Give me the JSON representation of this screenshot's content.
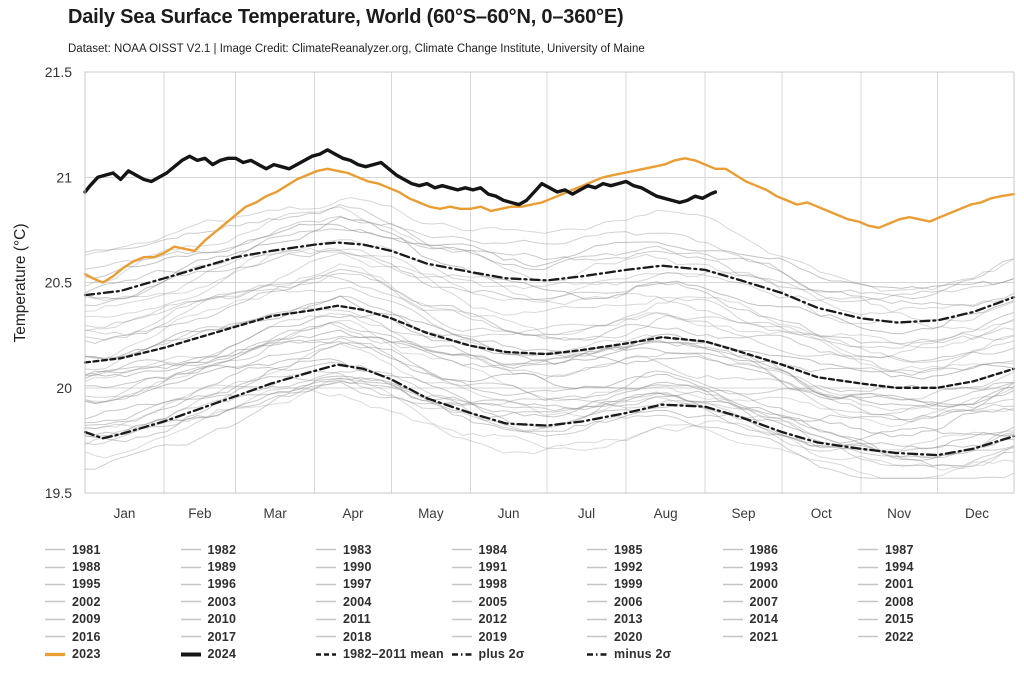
{
  "header": {
    "title": "Daily Sea Surface Temperature, World (60°S–60°N, 0–360°E)",
    "subtitle": "Dataset: NOAA OISST V2.1 | Image Credit: ClimateReanalyzer.org, Climate Change Institute, University of Maine"
  },
  "colors": {
    "line_2023": "#EA9D33",
    "line_2024": "#151515",
    "dashed_stats": "#1a1a1a",
    "year_lines": "#8c8c8c",
    "legend_year_swatch": "#c5c5c5",
    "grid": "#d7d7d7",
    "plot_border": "#c8c8c8",
    "title_text": "#1c1c1c",
    "muted_text": "#333333"
  },
  "chart_data": {
    "type": "line",
    "title": "Daily Sea Surface Temperature, World (60°S–60°N, 0–360°E)",
    "subtitle": "Dataset: NOAA OISST V2.1 | Image Credit: ClimateReanalyzer.org, Climate Change Institute, University of Maine",
    "xlabel": "",
    "ylabel": "Temperature (°C)",
    "ylim": [
      19.5,
      21.5
    ],
    "yticks": [
      21.5,
      21,
      20.5,
      20,
      19.5
    ],
    "grid": true,
    "legend_position": "bottom",
    "x_unit": "day of year (1–365)",
    "months": [
      "Jan",
      "Feb",
      "Mar",
      "Apr",
      "May",
      "Jun",
      "Jul",
      "Aug",
      "Sep",
      "Oct",
      "Nov",
      "Dec"
    ],
    "month_days": [
      31,
      28,
      31,
      30,
      31,
      30,
      31,
      31,
      30,
      31,
      30,
      31
    ],
    "series": [
      {
        "id": "plus2s",
        "name": "plus 2σ",
        "style": "dashdot",
        "color": "#1a1a1a",
        "width": 2.3,
        "d": [
          1,
          15,
          32,
          46,
          60,
          74,
          91,
          100,
          110,
          121,
          135,
          152,
          166,
          182,
          196,
          213,
          227,
          244,
          258,
          274,
          288,
          305,
          319,
          335,
          349,
          365
        ],
        "v": [
          20.44,
          20.46,
          20.52,
          20.57,
          20.62,
          20.65,
          20.68,
          20.69,
          20.68,
          20.65,
          20.59,
          20.55,
          20.52,
          20.51,
          20.53,
          20.56,
          20.58,
          20.56,
          20.51,
          20.45,
          20.38,
          20.33,
          20.31,
          20.32,
          20.36,
          20.43
        ]
      },
      {
        "id": "mean",
        "name": "1982–2011 mean",
        "style": "dashed",
        "color": "#1a1a1a",
        "width": 2.3,
        "d": [
          1,
          15,
          32,
          46,
          60,
          74,
          91,
          100,
          110,
          121,
          135,
          152,
          166,
          182,
          196,
          213,
          227,
          244,
          258,
          274,
          288,
          305,
          319,
          335,
          349,
          365
        ],
        "v": [
          20.12,
          20.14,
          20.19,
          20.24,
          20.29,
          20.34,
          20.37,
          20.39,
          20.37,
          20.33,
          20.26,
          20.2,
          20.17,
          20.16,
          20.18,
          20.21,
          20.24,
          20.22,
          20.17,
          20.11,
          20.05,
          20.02,
          20.0,
          20.0,
          20.03,
          20.09
        ]
      },
      {
        "id": "minus2s",
        "name": "minus 2σ",
        "style": "dashdot",
        "color": "#1a1a1a",
        "width": 2.3,
        "d": [
          1,
          8,
          15,
          32,
          46,
          60,
          74,
          91,
          100,
          110,
          121,
          135,
          152,
          166,
          182,
          196,
          213,
          227,
          244,
          258,
          274,
          288,
          305,
          319,
          335,
          349,
          365
        ],
        "v": [
          19.79,
          19.76,
          19.78,
          19.84,
          19.9,
          19.96,
          20.02,
          20.08,
          20.11,
          20.09,
          20.04,
          19.95,
          19.88,
          19.83,
          19.82,
          19.84,
          19.88,
          19.92,
          19.91,
          19.86,
          19.79,
          19.74,
          19.71,
          19.69,
          19.68,
          19.71,
          19.77
        ]
      },
      {
        "id": "y2023",
        "name": "2023",
        "style": "solid",
        "color": "#EA9D33",
        "width": 2.4,
        "d": [
          1,
          4,
          8,
          12,
          16,
          20,
          24,
          28,
          32,
          36,
          40,
          44,
          48,
          52,
          56,
          60,
          64,
          68,
          72,
          76,
          80,
          84,
          88,
          92,
          96,
          100,
          104,
          108,
          112,
          116,
          120,
          124,
          128,
          132,
          136,
          140,
          144,
          148,
          152,
          156,
          160,
          164,
          168,
          172,
          176,
          180,
          184,
          188,
          192,
          196,
          200,
          204,
          208,
          212,
          216,
          220,
          224,
          228,
          232,
          236,
          240,
          244,
          248,
          252,
          256,
          260,
          264,
          268,
          272,
          276,
          280,
          284,
          288,
          292,
          296,
          300,
          304,
          308,
          312,
          316,
          320,
          324,
          328,
          332,
          336,
          340,
          344,
          348,
          352,
          356,
          360,
          365
        ],
        "v": [
          20.54,
          20.52,
          20.5,
          20.53,
          20.57,
          20.6,
          20.62,
          20.62,
          20.64,
          20.67,
          20.66,
          20.65,
          20.7,
          20.74,
          20.78,
          20.82,
          20.86,
          20.88,
          20.91,
          20.93,
          20.96,
          20.99,
          21.01,
          21.03,
          21.04,
          21.03,
          21.02,
          21.0,
          20.98,
          20.97,
          20.95,
          20.93,
          20.9,
          20.88,
          20.86,
          20.85,
          20.86,
          20.85,
          20.85,
          20.86,
          20.84,
          20.85,
          20.86,
          20.86,
          20.87,
          20.88,
          20.9,
          20.92,
          20.94,
          20.96,
          20.98,
          21.0,
          21.01,
          21.02,
          21.03,
          21.04,
          21.05,
          21.06,
          21.08,
          21.09,
          21.08,
          21.06,
          21.04,
          21.04,
          21.01,
          20.98,
          20.96,
          20.94,
          20.91,
          20.89,
          20.87,
          20.88,
          20.86,
          20.84,
          20.82,
          20.8,
          20.79,
          20.77,
          20.76,
          20.78,
          20.8,
          20.81,
          20.8,
          20.79,
          20.81,
          20.83,
          20.85,
          20.87,
          20.88,
          20.9,
          20.91,
          20.92
        ]
      },
      {
        "id": "y2024",
        "name": "2024",
        "style": "solid",
        "color": "#151515",
        "width": 3.4,
        "d": [
          1,
          3,
          6,
          9,
          12,
          15,
          18,
          21,
          24,
          27,
          30,
          33,
          36,
          39,
          42,
          45,
          48,
          51,
          54,
          57,
          60,
          63,
          66,
          69,
          72,
          75,
          78,
          81,
          84,
          87,
          90,
          93,
          96,
          99,
          102,
          105,
          108,
          111,
          114,
          117,
          120,
          123,
          126,
          129,
          132,
          135,
          138,
          141,
          144,
          147,
          150,
          153,
          156,
          159,
          162,
          165,
          168,
          171,
          174,
          177,
          180,
          183,
          186,
          189,
          192,
          195,
          198,
          201,
          204,
          207,
          210,
          213,
          216,
          219,
          222,
          225,
          228,
          231,
          234,
          237,
          240,
          243,
          246,
          248
        ],
        "v": [
          20.93,
          20.96,
          21.0,
          21.01,
          21.02,
          20.99,
          21.03,
          21.01,
          20.99,
          20.98,
          21.0,
          21.02,
          21.05,
          21.08,
          21.1,
          21.08,
          21.09,
          21.06,
          21.08,
          21.09,
          21.09,
          21.07,
          21.08,
          21.06,
          21.04,
          21.06,
          21.05,
          21.04,
          21.06,
          21.08,
          21.1,
          21.11,
          21.13,
          21.11,
          21.09,
          21.08,
          21.06,
          21.05,
          21.06,
          21.07,
          21.04,
          21.01,
          20.99,
          20.97,
          20.96,
          20.97,
          20.95,
          20.96,
          20.95,
          20.94,
          20.95,
          20.94,
          20.95,
          20.92,
          20.91,
          20.89,
          20.88,
          20.87,
          20.89,
          20.93,
          20.97,
          20.95,
          20.93,
          20.94,
          20.92,
          20.94,
          20.96,
          20.95,
          20.97,
          20.96,
          20.97,
          20.98,
          20.96,
          20.95,
          20.93,
          20.91,
          20.9,
          20.89,
          20.88,
          20.89,
          20.91,
          20.9,
          20.92,
          20.93
        ]
      }
    ],
    "background_years": {
      "years": [
        "1981",
        "1982",
        "1983",
        "1984",
        "1985",
        "1986",
        "1987",
        "1988",
        "1989",
        "1990",
        "1991",
        "1992",
        "1993",
        "1994",
        "1995",
        "1996",
        "1997",
        "1998",
        "1999",
        "2000",
        "2001",
        "2002",
        "2003",
        "2004",
        "2005",
        "2006",
        "2007",
        "2008",
        "2009",
        "2010",
        "2011",
        "2012",
        "2013",
        "2014",
        "2015",
        "2016",
        "2017",
        "2018",
        "2019",
        "2020",
        "2021",
        "2022"
      ],
      "color": "#8c8c8c",
      "value_band": [
        19.57,
        20.92
      ],
      "note": "42 thin gray daily traces, one per year 1981–2022; older years cooler, recent years warmer; individual values not resolvable in source image, rendered procedurally within the band"
    }
  },
  "legend": {
    "special": [
      {
        "id": "2023",
        "label": "2023",
        "swatch": "orange"
      },
      {
        "id": "2024",
        "label": "2024",
        "swatch": "black"
      },
      {
        "id": "mean",
        "label": "1982–2011 mean",
        "swatch": "dashed"
      },
      {
        "id": "plus2s",
        "label": "plus 2σ",
        "swatch": "dashdot"
      },
      {
        "id": "minus2s",
        "label": "minus 2σ",
        "swatch": "dashdot"
      }
    ]
  }
}
